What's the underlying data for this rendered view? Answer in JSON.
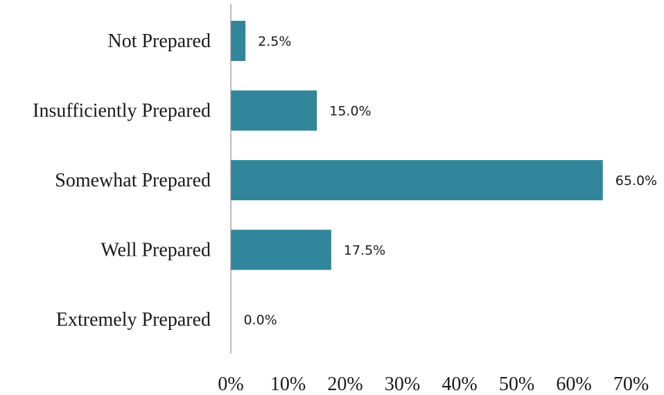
{
  "chart_data": {
    "type": "bar",
    "orientation": "horizontal",
    "categories": [
      "Not Prepared",
      "Insufficiently Prepared",
      "Somewhat Prepared",
      "Well Prepared",
      "Extremely Prepared"
    ],
    "values": [
      2.5,
      15.0,
      65.0,
      17.5,
      0.0
    ],
    "data_labels": [
      "2.5%",
      "15.0%",
      "65.0%",
      "17.5%",
      "0.0%"
    ],
    "x_ticks": [
      "0%",
      "10%",
      "20%",
      "30%",
      "40%",
      "50%",
      "60%",
      "70%"
    ],
    "xlim": [
      0,
      70
    ],
    "title": "",
    "xlabel": "",
    "ylabel": "",
    "grid": false,
    "legend": "none",
    "bar_color": "#32869b"
  }
}
